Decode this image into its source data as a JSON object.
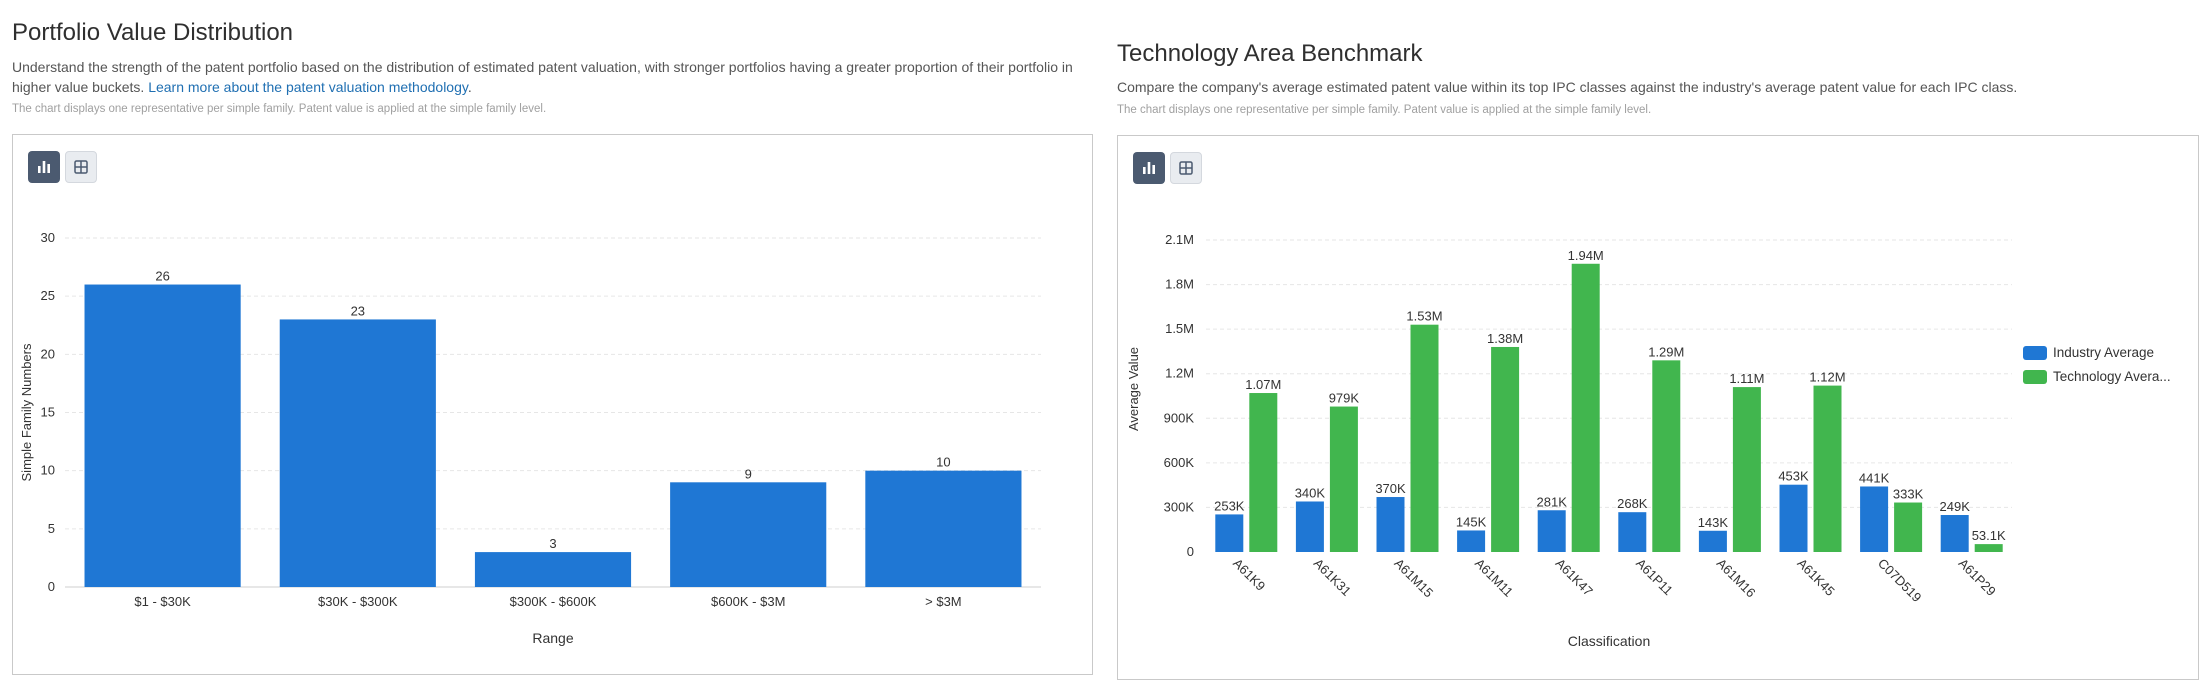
{
  "left": {
    "title": "Portfolio Value Distribution",
    "description": "Understand the strength of the patent portfolio based on the distribution of estimated patent valuation, with stronger portfolios having a greater proportion of their portfolio in higher value buckets.",
    "link_text": "Learn more about the patent valuation methodology",
    "link_suffix": ".",
    "note": "The chart displays one representative per simple family. Patent value is applied at the simple family level.",
    "view_toggle": {
      "chart_icon": "bar-chart-icon",
      "table_icon": "table-icon",
      "active": "chart"
    }
  },
  "right": {
    "title": "Technology Area Benchmark",
    "description": "Compare the company's average estimated patent value within its top IPC classes against the industry's average patent value for each IPC class.",
    "note": "The chart displays one representative per simple family. Patent value is applied at the simple family level.",
    "view_toggle": {
      "chart_icon": "bar-chart-icon",
      "table_icon": "table-icon",
      "active": "chart"
    }
  },
  "colors": {
    "industry": "#1f77d4",
    "technology": "#41b64e",
    "grid": "#e6e6e6",
    "toggle_active": "#4b5a70"
  },
  "chart_data": [
    {
      "type": "bar",
      "title": "Portfolio Value Distribution",
      "categories": [
        "$1 - $30K",
        "$30K - $300K",
        "$300K - $600K",
        "$600K - $3M",
        "> $3M"
      ],
      "values": [
        26,
        23,
        3,
        9,
        10
      ],
      "data_labels": [
        "26",
        "23",
        "3",
        "9",
        "10"
      ],
      "xlabel": "Range",
      "ylabel": "Simple Family Numbers",
      "ylim": [
        0,
        30
      ],
      "yticks": [
        0,
        5,
        10,
        15,
        20,
        25,
        30
      ],
      "ytick_labels": [
        "0",
        "5",
        "10",
        "15",
        "20",
        "25",
        "30"
      ],
      "grid": true,
      "legend": "none"
    },
    {
      "type": "bar",
      "title": "Technology Area Benchmark",
      "categories": [
        "A61K9",
        "A61K31",
        "A61M15",
        "A61M11",
        "A61K47",
        "A61P11",
        "A61M16",
        "A61K45",
        "C07D519",
        "A61P29"
      ],
      "series": [
        {
          "name": "Industry Average",
          "values": [
            253000,
            340000,
            370000,
            145000,
            281000,
            268000,
            143000,
            453000,
            441000,
            249000
          ],
          "labels": [
            "253K",
            "340K",
            "370K",
            "145K",
            "281K",
            "268K",
            "143K",
            "453K",
            "441K",
            "249K"
          ]
        },
        {
          "name": "Technology Average",
          "legend_label": "Technology Avera...",
          "values": [
            1070000,
            979000,
            1530000,
            1380000,
            1940000,
            1290000,
            1110000,
            1120000,
            333000,
            53100
          ],
          "labels": [
            "1.07M",
            "979K",
            "1.53M",
            "1.38M",
            "1.94M",
            "1.29M",
            "1.11M",
            "1.12M",
            "333K",
            "53.1K"
          ]
        }
      ],
      "xlabel": "Classification",
      "ylabel": "Average Value",
      "ylim": [
        0,
        2100000
      ],
      "yticks": [
        0,
        300000,
        600000,
        900000,
        1200000,
        1500000,
        1800000,
        2100000
      ],
      "ytick_labels": [
        "0",
        "300K",
        "600K",
        "900K",
        "1.2M",
        "1.5M",
        "1.8M",
        "2.1M"
      ],
      "grid": true,
      "legend": "right"
    }
  ]
}
